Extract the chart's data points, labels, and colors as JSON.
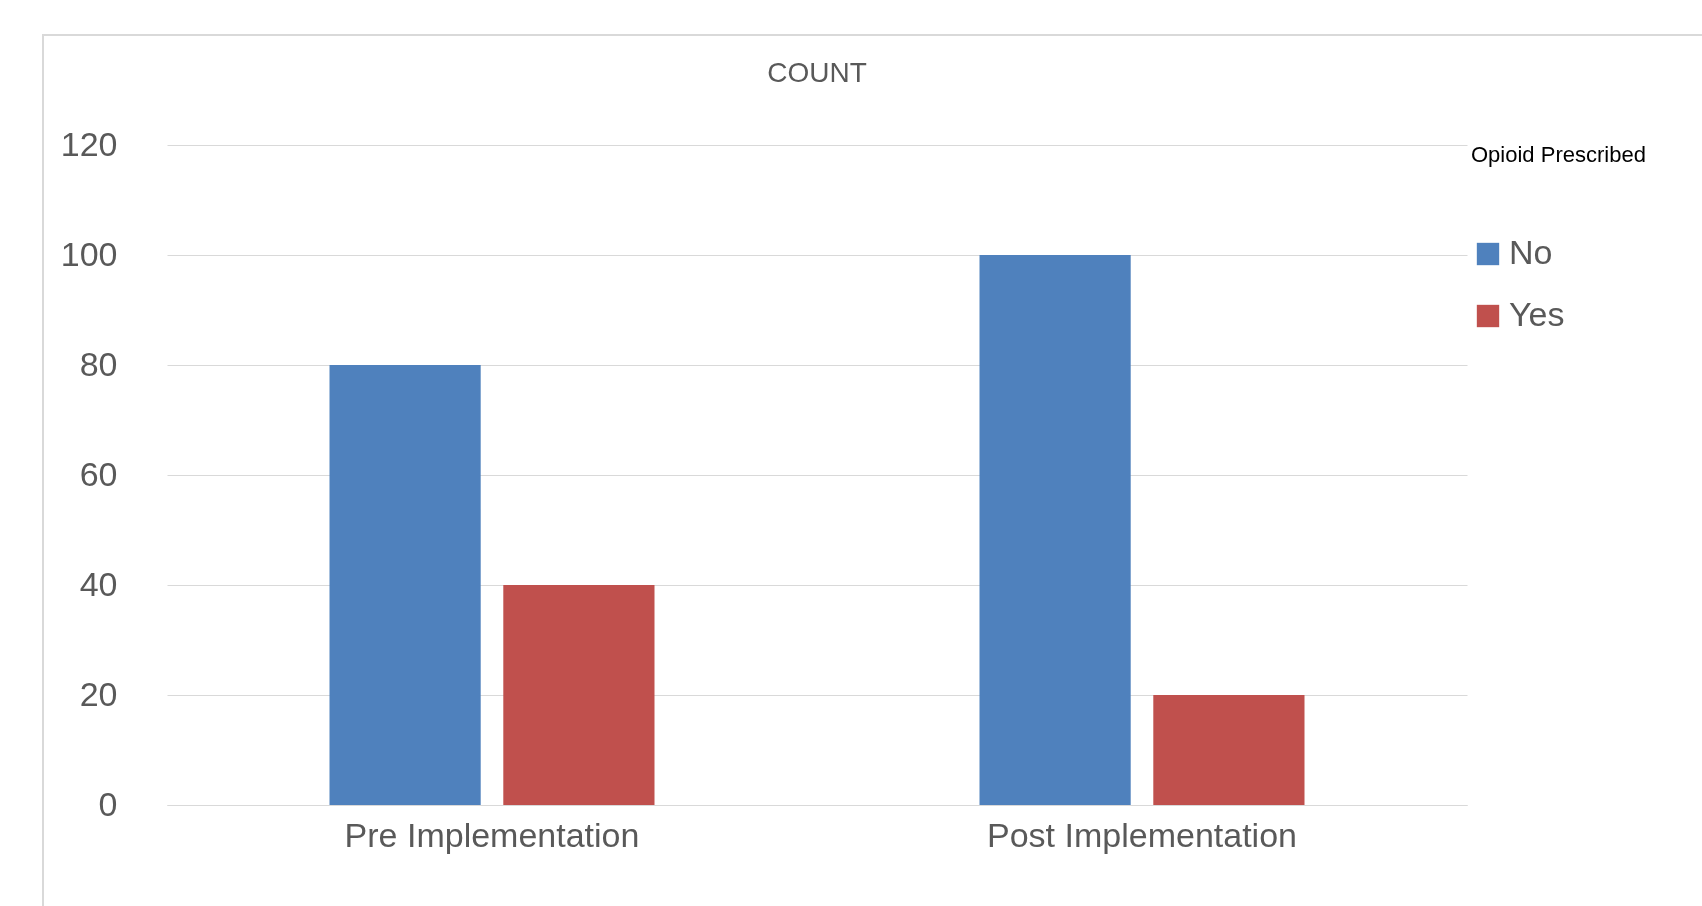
{
  "chart_data": {
    "type": "bar",
    "title": "COUNT",
    "legend_title": "Opioid Prescribed",
    "categories": [
      "Pre Implementation",
      "Post Implementation"
    ],
    "series": [
      {
        "name": "No",
        "color": "#4f81bd",
        "values": [
          80,
          100
        ]
      },
      {
        "name": "Yes",
        "color": "#c0504d",
        "values": [
          40,
          20
        ]
      }
    ],
    "ylim": [
      0,
      120
    ],
    "yticks": [
      0,
      20,
      40,
      60,
      80,
      100,
      120
    ],
    "grid": "y",
    "legend": "right"
  }
}
